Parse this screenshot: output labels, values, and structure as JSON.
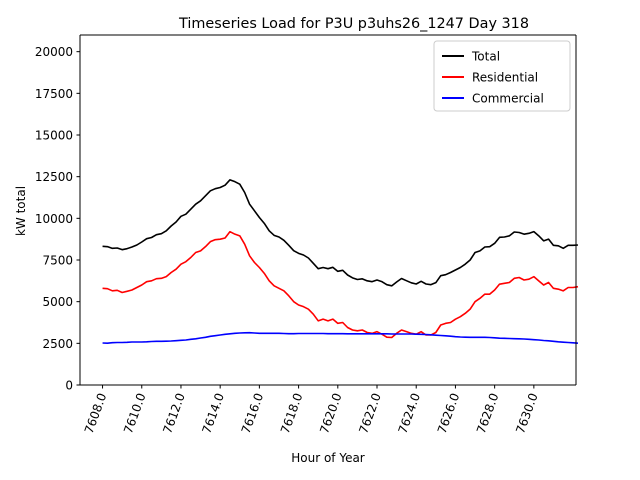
{
  "chart_data": {
    "type": "line",
    "title": "Timeseries Load for P3U p3uhs26_1247  Day 318",
    "xlabel": "Hour of Year",
    "ylabel": "kW total",
    "xlim": [
      7606.85,
      7632.15
    ],
    "ylim": [
      0,
      21000
    ],
    "xticks": [
      7608,
      7610,
      7612,
      7614,
      7616,
      7618,
      7620,
      7622,
      7624,
      7626,
      7628,
      7630
    ],
    "xtick_labels": [
      "7608.0",
      "7610.0",
      "7612.0",
      "7614.0",
      "7616.0",
      "7618.0",
      "7620.0",
      "7622.0",
      "7624.0",
      "7626.0",
      "7628.0",
      "7630.0"
    ],
    "yticks": [
      0,
      2500,
      5000,
      7500,
      10000,
      12500,
      15000,
      17500,
      20000
    ],
    "ytick_labels": [
      "0",
      "2500",
      "5000",
      "7500",
      "10000",
      "12500",
      "15000",
      "17500",
      "20000"
    ],
    "legend": "top-right",
    "x_start": 7608.0,
    "x_step": 0.25,
    "series": [
      {
        "name": "Total",
        "color": "#000000",
        "values": [
          8320,
          8300,
          8200,
          8220,
          8120,
          8180,
          8280,
          8400,
          8580,
          8780,
          8850,
          9020,
          9080,
          9250,
          9540,
          9780,
          10120,
          10250,
          10550,
          10850,
          11050,
          11350,
          11650,
          11780,
          11850,
          11990,
          12310,
          12200,
          12050,
          11550,
          10850,
          10450,
          10050,
          9700,
          9250,
          8980,
          8880,
          8680,
          8380,
          8060,
          7900,
          7800,
          7620,
          7300,
          6980,
          7050,
          6980,
          7060,
          6820,
          6880,
          6600,
          6430,
          6330,
          6370,
          6250,
          6200,
          6300,
          6200,
          6020,
          5950,
          6180,
          6390,
          6260,
          6130,
          6060,
          6220,
          6060,
          6020,
          6140,
          6560,
          6620,
          6750,
          6900,
          7050,
          7250,
          7500,
          7950,
          8050,
          8280,
          8300,
          8500,
          8860,
          8880,
          8950,
          9180,
          9150,
          9050,
          9100,
          9200,
          8950,
          8650,
          8750,
          8380,
          8350,
          8200,
          8380,
          8380,
          8400
        ]
      },
      {
        "name": "Residential",
        "color": "#ff0000",
        "values": [
          5800,
          5780,
          5650,
          5680,
          5550,
          5620,
          5700,
          5850,
          6000,
          6200,
          6250,
          6380,
          6400,
          6500,
          6750,
          6950,
          7250,
          7400,
          7650,
          7950,
          8050,
          8300,
          8600,
          8720,
          8750,
          8820,
          9200,
          9050,
          8950,
          8450,
          7750,
          7350,
          7050,
          6700,
          6250,
          5950,
          5800,
          5650,
          5350,
          5000,
          4800,
          4700,
          4550,
          4250,
          3850,
          3950,
          3850,
          3950,
          3700,
          3750,
          3450,
          3300,
          3250,
          3300,
          3150,
          3100,
          3200,
          3050,
          2870,
          2850,
          3100,
          3300,
          3200,
          3100,
          3050,
          3200,
          3000,
          3000,
          3150,
          3600,
          3700,
          3750,
          3950,
          4100,
          4300,
          4550,
          5000,
          5200,
          5450,
          5450,
          5700,
          6050,
          6100,
          6150,
          6400,
          6450,
          6300,
          6350,
          6500,
          6250,
          6000,
          6150,
          5800,
          5750,
          5650,
          5850,
          5850,
          5900
        ]
      },
      {
        "name": "Commercial",
        "color": "#0000ff",
        "values": [
          2520,
          2510,
          2540,
          2550,
          2550,
          2560,
          2580,
          2580,
          2580,
          2590,
          2610,
          2620,
          2620,
          2630,
          2640,
          2660,
          2680,
          2700,
          2740,
          2770,
          2820,
          2860,
          2920,
          2960,
          3000,
          3040,
          3070,
          3100,
          3120,
          3130,
          3140,
          3120,
          3100,
          3100,
          3100,
          3100,
          3100,
          3090,
          3080,
          3080,
          3090,
          3090,
          3090,
          3090,
          3090,
          3090,
          3080,
          3080,
          3080,
          3080,
          3070,
          3070,
          3070,
          3070,
          3070,
          3070,
          3070,
          3070,
          3070,
          3060,
          3060,
          3060,
          3060,
          3060,
          3050,
          3040,
          3030,
          3010,
          2990,
          2970,
          2950,
          2930,
          2900,
          2880,
          2870,
          2860,
          2860,
          2860,
          2860,
          2850,
          2830,
          2810,
          2800,
          2790,
          2780,
          2770,
          2760,
          2740,
          2720,
          2700,
          2670,
          2650,
          2620,
          2590,
          2570,
          2550,
          2530,
          2510
        ]
      }
    ]
  }
}
